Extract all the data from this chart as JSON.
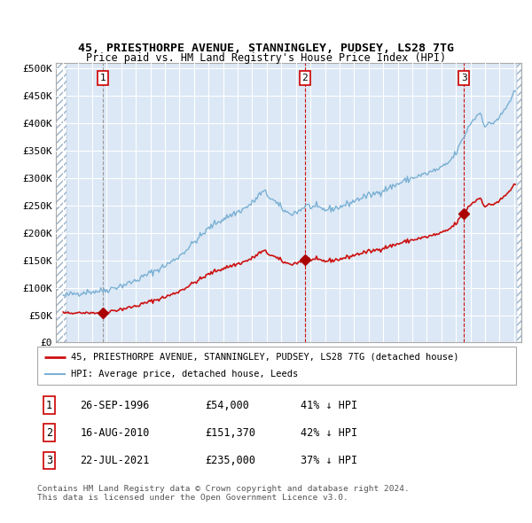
{
  "title1": "45, PRIESTHORPE AVENUE, STANNINGLEY, PUDSEY, LS28 7TG",
  "title2": "Price paid vs. HM Land Registry's House Price Index (HPI)",
  "ylabel_ticks": [
    "£0",
    "£50K",
    "£100K",
    "£150K",
    "£200K",
    "£250K",
    "£300K",
    "£350K",
    "£400K",
    "£450K",
    "£500K"
  ],
  "ytick_vals": [
    0,
    50000,
    100000,
    150000,
    200000,
    250000,
    300000,
    350000,
    400000,
    450000,
    500000
  ],
  "ylim": [
    0,
    510000
  ],
  "xlim_start": 1993.5,
  "xlim_end": 2025.5,
  "sale_dates": [
    1996.73,
    2010.62,
    2021.55
  ],
  "sale_prices": [
    54000,
    151370,
    235000
  ],
  "sale_labels": [
    "1",
    "2",
    "3"
  ],
  "hpi_line_color": "#7ab0d4",
  "sale_line_color": "#cc1111",
  "sale_dot_color": "#aa0000",
  "vline_color_1": "#aaaaaa",
  "vline_color_23": "#cc1111",
  "legend_label1": "45, PRIESTHORPE AVENUE, STANNINGLEY, PUDSEY, LS28 7TG (detached house)",
  "legend_label2": "HPI: Average price, detached house, Leeds",
  "footer1": "Contains HM Land Registry data © Crown copyright and database right 2024.",
  "footer2": "This data is licensed under the Open Government Licence v3.0.",
  "table_rows": [
    [
      "1",
      "26-SEP-1996",
      "£54,000",
      "41% ↓ HPI"
    ],
    [
      "2",
      "16-AUG-2010",
      "£151,370",
      "42% ↓ HPI"
    ],
    [
      "3",
      "22-JUL-2021",
      "£235,000",
      "37% ↓ HPI"
    ]
  ]
}
